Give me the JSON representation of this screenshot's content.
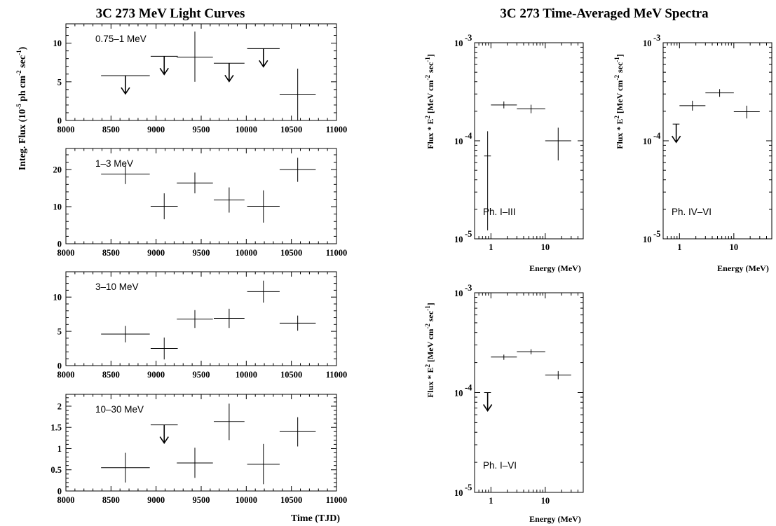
{
  "left_title": "3C 273 MeV Light Curves",
  "right_title": "3C 273 Time-Averaged MeV Spectra",
  "lc_ylabel": {
    "a": "Integ. Flux (10",
    "b": "-5",
    "c": " ph cm",
    "d": "-2",
    "e": " sec",
    "f": "-1",
    "g": ")"
  },
  "lc_xlabel": "Time (TJD)",
  "sp_ylabel": {
    "a": "Flux * E",
    "b": "2",
    "c": " [MeV cm",
    "d": "-2",
    "e": " sec",
    "f": "-1",
    "g": "]"
  },
  "sp_xlabel": "Energy (MeV)",
  "chart_data": [
    {
      "type": "scatter",
      "panel": "light-curve",
      "label": "0.75–1 MeV",
      "xlim": [
        8000,
        11000
      ],
      "ylim": [
        0,
        12.5
      ],
      "xticks": [
        8000,
        8500,
        9000,
        9500,
        10000,
        10500,
        11000
      ],
      "yticks": [
        0,
        5,
        10
      ],
      "points": [
        {
          "x": 8660,
          "xerr": 270,
          "y": 5.8,
          "upper_limit": true
        },
        {
          "x": 9090,
          "xerr": 150,
          "y": 8.3,
          "upper_limit": true
        },
        {
          "x": 9430,
          "xerr": 200,
          "y": 8.2,
          "yerr_lo": 3.2,
          "yerr_hi": 3.3
        },
        {
          "x": 9810,
          "xerr": 170,
          "y": 7.4,
          "upper_limit": true
        },
        {
          "x": 10190,
          "xerr": 180,
          "y": 9.3,
          "upper_limit": true
        },
        {
          "x": 10570,
          "xerr": 200,
          "y": 3.4,
          "yerr_lo": 3.4,
          "yerr_hi": 3.3
        }
      ]
    },
    {
      "type": "scatter",
      "panel": "light-curve",
      "label": "1–3 MeV",
      "xlim": [
        8000,
        11000
      ],
      "ylim": [
        0,
        25.7
      ],
      "xticks": [
        8000,
        8500,
        9000,
        9500,
        10000,
        10500,
        11000
      ],
      "yticks": [
        0,
        10,
        20
      ],
      "points": [
        {
          "x": 8660,
          "xerr": 270,
          "y": 18.8,
          "yerr_lo": 2.7,
          "yerr_hi": 2.5
        },
        {
          "x": 9090,
          "xerr": 150,
          "y": 10.1,
          "yerr_lo": 3.5,
          "yerr_hi": 3.5
        },
        {
          "x": 9430,
          "xerr": 200,
          "y": 16.4,
          "yerr_lo": 2.8,
          "yerr_hi": 2.8
        },
        {
          "x": 9810,
          "xerr": 170,
          "y": 11.8,
          "yerr_lo": 3.4,
          "yerr_hi": 3.4
        },
        {
          "x": 10190,
          "xerr": 180,
          "y": 10.1,
          "yerr_lo": 4.4,
          "yerr_hi": 4.3
        },
        {
          "x": 10570,
          "xerr": 200,
          "y": 20.0,
          "yerr_lo": 3.3,
          "yerr_hi": 3.2
        }
      ]
    },
    {
      "type": "scatter",
      "panel": "light-curve",
      "label": "3–10 MeV",
      "xlim": [
        8000,
        11000
      ],
      "ylim": [
        0,
        13.7
      ],
      "xticks": [
        8000,
        8500,
        9000,
        9500,
        10000,
        10500,
        11000
      ],
      "yticks": [
        0,
        5,
        10
      ],
      "points": [
        {
          "x": 8660,
          "xerr": 270,
          "y": 4.6,
          "yerr_lo": 1.2,
          "yerr_hi": 1.2
        },
        {
          "x": 9090,
          "xerr": 150,
          "y": 2.5,
          "yerr_lo": 1.6,
          "yerr_hi": 1.6
        },
        {
          "x": 9430,
          "xerr": 200,
          "y": 6.8,
          "yerr_lo": 1.3,
          "yerr_hi": 1.3
        },
        {
          "x": 9810,
          "xerr": 170,
          "y": 6.9,
          "yerr_lo": 1.4,
          "yerr_hi": 1.4
        },
        {
          "x": 10190,
          "xerr": 180,
          "y": 10.8,
          "yerr_lo": 1.6,
          "yerr_hi": 1.6
        },
        {
          "x": 10570,
          "xerr": 200,
          "y": 6.2,
          "yerr_lo": 1.1,
          "yerr_hi": 1.1
        }
      ]
    },
    {
      "type": "scatter",
      "panel": "light-curve",
      "label": "10–30 MeV",
      "xlim": [
        8000,
        11000
      ],
      "ylim": [
        0,
        2.28
      ],
      "xticks": [
        8000,
        8500,
        9000,
        9500,
        10000,
        10500,
        11000
      ],
      "yticks": [
        0,
        0.5,
        1,
        1.5,
        2
      ],
      "points": [
        {
          "x": 8660,
          "xerr": 270,
          "y": 0.55,
          "yerr_lo": 0.35,
          "yerr_hi": 0.35
        },
        {
          "x": 9090,
          "xerr": 150,
          "y": 1.56,
          "upper_limit": true
        },
        {
          "x": 9430,
          "xerr": 200,
          "y": 0.66,
          "yerr_lo": 0.35,
          "yerr_hi": 0.36
        },
        {
          "x": 9810,
          "xerr": 170,
          "y": 1.64,
          "yerr_lo": 0.44,
          "yerr_hi": 0.42
        },
        {
          "x": 10190,
          "xerr": 180,
          "y": 0.63,
          "yerr_lo": 0.47,
          "yerr_hi": 0.48
        },
        {
          "x": 10570,
          "xerr": 200,
          "y": 1.4,
          "yerr_lo": 0.35,
          "yerr_hi": 0.34
        }
      ]
    },
    {
      "type": "scatter",
      "panel": "spectrum",
      "label": "Ph. I–III",
      "xscale": "log",
      "yscale": "log",
      "xlim": [
        0.5,
        50
      ],
      "ylim": [
        1e-05,
        0.001
      ],
      "xticks": [
        1,
        10
      ],
      "yticks": [
        1e-05,
        0.0001,
        0.001
      ],
      "xtick_labels": [
        "1",
        "10"
      ],
      "ytick_base": [
        "10",
        "10",
        "10"
      ],
      "ytick_exp": [
        "-5",
        "-4",
        "-3"
      ],
      "points": [
        {
          "x": 0.87,
          "xlo": 0.75,
          "xhi": 1.0,
          "y": 7e-05,
          "ylo": 1.22e-05,
          "yhi": 0.000125
        },
        {
          "x": 1.73,
          "xlo": 1.0,
          "xhi": 3.0,
          "y": 0.000232,
          "ylo": 0.000214,
          "yhi": 0.000252
        },
        {
          "x": 5.48,
          "xlo": 3.0,
          "xhi": 10.0,
          "y": 0.000212,
          "ylo": 0.000191,
          "yhi": 0.000233
        },
        {
          "x": 17.3,
          "xlo": 10.0,
          "xhi": 30.0,
          "y": 0.0001,
          "ylo": 6.3e-05,
          "yhi": 0.000136
        }
      ]
    },
    {
      "type": "scatter",
      "panel": "spectrum",
      "label": "Ph. IV–VI",
      "xscale": "log",
      "yscale": "log",
      "xlim": [
        0.5,
        50
      ],
      "ylim": [
        1e-05,
        0.001
      ],
      "xticks": [
        1,
        10
      ],
      "yticks": [
        1e-05,
        0.0001,
        0.001
      ],
      "xtick_labels": [
        "1",
        "10"
      ],
      "ytick_base": [
        "10",
        "10",
        "10"
      ],
      "ytick_exp": [
        "-5",
        "-4",
        "-3"
      ],
      "points": [
        {
          "x": 0.87,
          "xlo": 0.75,
          "xhi": 1.0,
          "y": 0.000148,
          "upper_limit": true
        },
        {
          "x": 1.73,
          "xlo": 1.0,
          "xhi": 3.0,
          "y": 0.000228,
          "ylo": 0.000203,
          "yhi": 0.000256
        },
        {
          "x": 5.48,
          "xlo": 3.0,
          "xhi": 10.0,
          "y": 0.000308,
          "ylo": 0.000281,
          "yhi": 0.000336
        },
        {
          "x": 17.3,
          "xlo": 10.0,
          "xhi": 30.0,
          "y": 0.000198,
          "ylo": 0.000169,
          "yhi": 0.000228
        }
      ]
    },
    {
      "type": "scatter",
      "panel": "spectrum",
      "label": "Ph. I–VI",
      "xscale": "log",
      "yscale": "log",
      "xlim": [
        0.5,
        50
      ],
      "ylim": [
        1e-05,
        0.001
      ],
      "xticks": [
        1,
        10
      ],
      "yticks": [
        1e-05,
        0.0001,
        0.001
      ],
      "xtick_labels": [
        "1",
        "10"
      ],
      "ytick_base": [
        "10",
        "10",
        "10"
      ],
      "ytick_exp": [
        "-5",
        "-4",
        "-3"
      ],
      "points": [
        {
          "x": 0.87,
          "xlo": 0.75,
          "xhi": 1.0,
          "y": 0.0001,
          "upper_limit": true
        },
        {
          "x": 1.73,
          "xlo": 1.0,
          "xhi": 3.0,
          "y": 0.000227,
          "ylo": 0.000213,
          "yhi": 0.00024
        },
        {
          "x": 5.48,
          "xlo": 3.0,
          "xhi": 10.0,
          "y": 0.000257,
          "ylo": 0.000242,
          "yhi": 0.000272
        },
        {
          "x": 17.3,
          "xlo": 10.0,
          "xhi": 30.0,
          "y": 0.00015,
          "ylo": 0.000136,
          "yhi": 0.000164
        }
      ]
    }
  ]
}
